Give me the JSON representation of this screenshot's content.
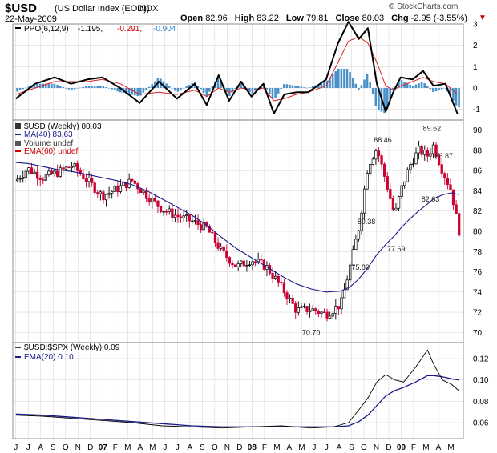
{
  "header": {
    "symbol": "$USD",
    "name": "(US Dollar Index (EOD))",
    "exchange": "INDX",
    "date": "22-May-2009",
    "brand": "© StockCharts.com",
    "open_label": "Open",
    "open": "82.96",
    "high_label": "High",
    "high": "83.22",
    "low_label": "Low",
    "low": "79.81",
    "close_label": "Close",
    "close": "80.03",
    "chg_label": "Chg",
    "chg": "-2.95 (-3.55%)",
    "chg_arrow": "▼"
  },
  "colors": {
    "up": "#000000",
    "down": "#cc0033",
    "ma40": "#1a1a8c",
    "ema": "#cc0000",
    "hist": "#4a90c8",
    "grid": "#d8d8d8",
    "signal": "#dd2222"
  },
  "ppo_panel": {
    "legend_prefix": "PPO(6,12,9)",
    "v1": "-1.195,",
    "v2": "-0.291,",
    "v3": "-0.904",
    "y_ticks": [
      "3",
      "2",
      "1",
      "0",
      "-1"
    ]
  },
  "price_panel": {
    "legend_main": "$USD (Weekly) 80.03",
    "legend_ma": "MA(40) 83.63",
    "legend_volume": "Volume undef",
    "legend_ema": "EMA(60) undef",
    "y_ticks": [
      "90",
      "88",
      "86",
      "84",
      "82",
      "80",
      "78",
      "76",
      "74",
      "72",
      "70"
    ]
  },
  "ratio_panel": {
    "legend_main": "$USD:$SPX (Weekly) 0.09",
    "legend_ema": "EMA(20) 0.10",
    "y_ticks": [
      "0.12",
      "0.10",
      "0.08",
      "0.06"
    ]
  },
  "x_labels": [
    "J",
    "J",
    "A",
    "S",
    "O",
    "N",
    "D",
    "07",
    "F",
    "M",
    "A",
    "M",
    "J",
    "J",
    "A",
    "S",
    "O",
    "N",
    "D",
    "08",
    "F",
    "M",
    "A",
    "M",
    "J",
    "J",
    "A",
    "S",
    "O",
    "N",
    "D",
    "09",
    "F",
    "M",
    "A",
    "M"
  ],
  "chart_data": [
    {
      "type": "line",
      "title": "PPO(6,12,9)",
      "ylim": [
        -1.5,
        3
      ],
      "x": [
        2006.42,
        2006.55,
        2006.68,
        2006.79,
        2006.9,
        2007.0,
        2007.12,
        2007.25,
        2007.38,
        2007.5,
        2007.62,
        2007.7,
        2007.78,
        2007.85,
        2007.93,
        2008.0,
        2008.08,
        2008.15,
        2008.22,
        2008.3,
        2008.38,
        2008.5,
        2008.58,
        2008.65,
        2008.72,
        2008.78,
        2008.84,
        2008.9,
        2008.95,
        2009.0,
        2009.08,
        2009.15,
        2009.22,
        2009.3,
        2009.38
      ],
      "series": [
        {
          "name": "PPO",
          "values": [
            -0.5,
            0.2,
            0.5,
            0.2,
            0.4,
            0.5,
            0.0,
            -0.7,
            0.3,
            -0.5,
            0.2,
            -0.8,
            0.6,
            -0.6,
            0.3,
            -0.4,
            0.2,
            -1.2,
            -0.3,
            -0.2,
            -0.2,
            0.4,
            2.1,
            3.1,
            2.3,
            2.8,
            0.2,
            -1.1,
            -0.2,
            0.5,
            0.4,
            0.8,
            0.1,
            0.2,
            -1.2
          ]
        },
        {
          "name": "Signal",
          "values": [
            -0.3,
            0.0,
            0.3,
            0.3,
            0.3,
            0.4,
            0.2,
            -0.3,
            -0.2,
            -0.3,
            -0.1,
            -0.4,
            0.0,
            -0.2,
            0.0,
            -0.1,
            0.0,
            -0.6,
            -0.5,
            -0.3,
            -0.2,
            0.1,
            1.2,
            2.2,
            2.4,
            2.1,
            1.2,
            0.1,
            -0.1,
            0.1,
            0.3,
            0.5,
            0.3,
            0.2,
            -0.3
          ]
        }
      ]
    },
    {
      "type": "line",
      "title": "$USD (Weekly) 80.03",
      "ylim": [
        69,
        91
      ],
      "annotations": [
        {
          "x": 2008.4,
          "y": 70.7,
          "label": "70.70"
        },
        {
          "x": 2008.73,
          "y": 75.89,
          "label": "75.89"
        },
        {
          "x": 2008.77,
          "y": 80.38,
          "label": "80.38"
        },
        {
          "x": 2008.88,
          "y": 88.46,
          "label": "88.46"
        },
        {
          "x": 2008.97,
          "y": 77.69,
          "label": "77.69"
        },
        {
          "x": 2009.21,
          "y": 89.62,
          "label": "89.62"
        },
        {
          "x": 2009.29,
          "y": 86.87,
          "label": "86.87"
        },
        {
          "x": 2009.2,
          "y": 82.63,
          "label": "82.63"
        }
      ],
      "x": [
        2006.42,
        2006.5,
        2006.6,
        2006.7,
        2006.8,
        2006.9,
        2007.0,
        2007.1,
        2007.2,
        2007.3,
        2007.4,
        2007.5,
        2007.6,
        2007.7,
        2007.8,
        2007.9,
        2008.0,
        2008.1,
        2008.2,
        2008.3,
        2008.4,
        2008.5,
        2008.6,
        2008.66,
        2008.72,
        2008.78,
        2008.84,
        2008.9,
        2008.96,
        2009.0,
        2009.06,
        2009.12,
        2009.18,
        2009.22,
        2009.28,
        2009.34,
        2009.39
      ],
      "series": [
        {
          "name": "$USD",
          "values": [
            85.0,
            86.2,
            85.3,
            85.8,
            86.5,
            85.0,
            83.5,
            84.2,
            85.0,
            83.5,
            82.2,
            81.5,
            81.0,
            80.3,
            78.0,
            76.5,
            77.2,
            76.5,
            74.5,
            72.2,
            72.3,
            71.8,
            72.8,
            76.5,
            80.4,
            86.5,
            88.2,
            85.0,
            81.5,
            84.0,
            86.5,
            88.0,
            87.5,
            88.5,
            86.0,
            84.0,
            80.03
          ]
        },
        {
          "name": "MA(40)",
          "values": [
            86.8,
            86.7,
            86.4,
            86.1,
            85.9,
            85.6,
            85.3,
            85.0,
            84.6,
            84.0,
            83.2,
            82.4,
            81.6,
            80.6,
            79.4,
            78.3,
            77.4,
            76.5,
            75.6,
            74.8,
            74.3,
            74.0,
            74.1,
            74.5,
            75.3,
            76.4,
            77.7,
            78.7,
            79.6,
            80.3,
            81.2,
            82.0,
            82.7,
            83.2,
            83.6,
            83.8,
            83.63
          ]
        }
      ]
    },
    {
      "type": "line",
      "title": "$USD:$SPX (Weekly) 0.09",
      "ylim": [
        0.045,
        0.135
      ],
      "x": [
        2006.42,
        2006.6,
        2006.8,
        2007.0,
        2007.2,
        2007.4,
        2007.6,
        2007.8,
        2008.0,
        2008.2,
        2008.4,
        2008.55,
        2008.65,
        2008.72,
        2008.78,
        2008.84,
        2008.9,
        2008.96,
        2009.02,
        2009.1,
        2009.18,
        2009.22,
        2009.28,
        2009.34,
        2009.39
      ],
      "series": [
        {
          "name": "$USD:$SPX",
          "values": [
            0.067,
            0.066,
            0.064,
            0.062,
            0.06,
            0.057,
            0.056,
            0.055,
            0.056,
            0.057,
            0.055,
            0.056,
            0.06,
            0.072,
            0.083,
            0.098,
            0.105,
            0.1,
            0.098,
            0.112,
            0.128,
            0.115,
            0.1,
            0.096,
            0.09
          ]
        },
        {
          "name": "EMA(20)",
          "values": [
            0.068,
            0.067,
            0.065,
            0.063,
            0.061,
            0.059,
            0.057,
            0.056,
            0.056,
            0.056,
            0.056,
            0.056,
            0.057,
            0.061,
            0.067,
            0.076,
            0.085,
            0.09,
            0.093,
            0.098,
            0.104,
            0.104,
            0.103,
            0.101,
            0.1
          ]
        }
      ]
    }
  ]
}
